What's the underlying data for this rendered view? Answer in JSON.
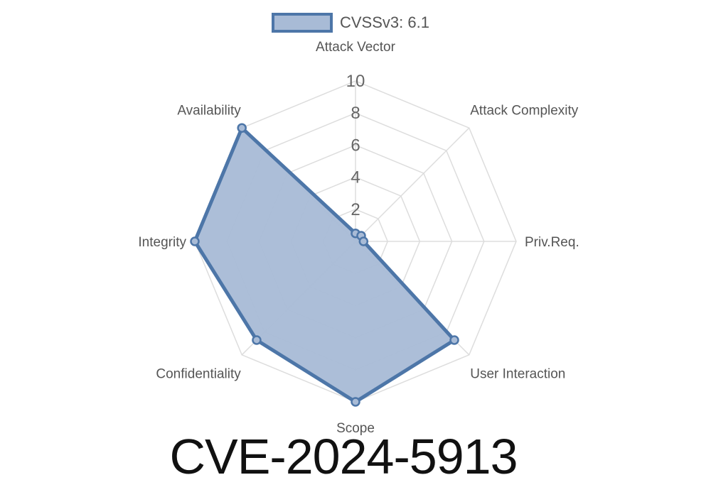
{
  "chart_data": {
    "type": "radar",
    "title": "CVE-2024-5913",
    "axes": [
      "Attack Vector",
      "Attack Complexity",
      "Priv.Req.",
      "User Interaction",
      "Scope",
      "Confidentiality",
      "Integrity",
      "Availability"
    ],
    "series": [
      {
        "name": "CVSSv3: 6.1",
        "values": [
          0.5,
          0.5,
          0.5,
          8.7,
          10,
          8.7,
          10,
          10
        ]
      }
    ],
    "rlim": [
      0,
      10
    ],
    "ticks": [
      2,
      4,
      6,
      8,
      10
    ],
    "tick_labels": [
      "2",
      "4",
      "6",
      "8",
      "10"
    ],
    "grid": true,
    "legend_position": "top-center",
    "colors": {
      "line": "#4d76a8",
      "fill": "#a8bbd6",
      "grid": "#dddddd"
    }
  }
}
